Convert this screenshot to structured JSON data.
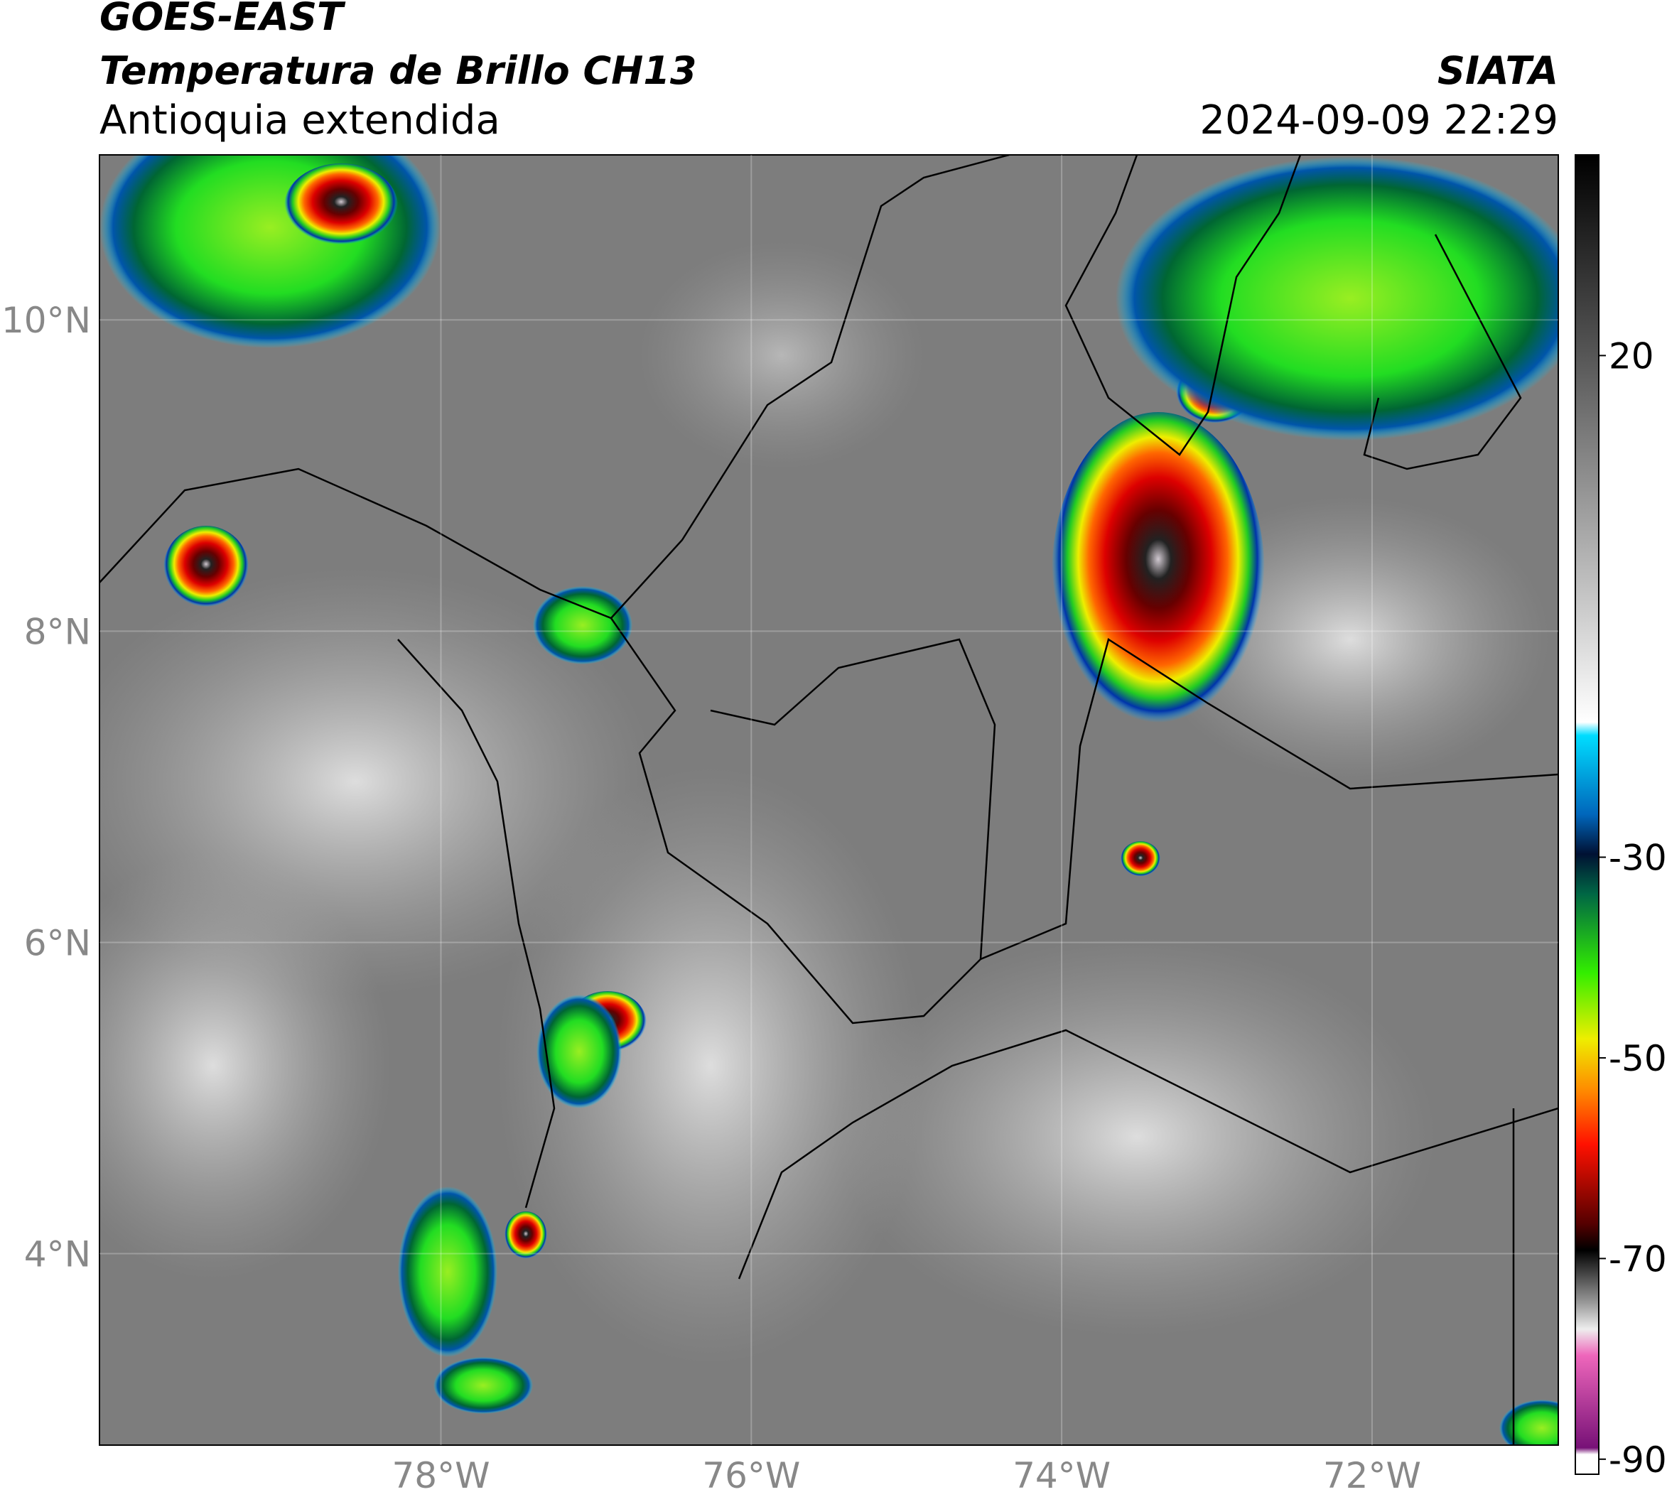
{
  "header": {
    "satellite": "GOES-EAST",
    "product": "Temperatura de Brillo CH13",
    "region": "Antioquia extendida",
    "org": "SIATA",
    "datetime": "2024-09-09 22:29"
  },
  "map": {
    "xlim": [
      -80.2,
      -70.8
    ],
    "ylim": [
      2.77,
      11.06
    ],
    "xticks": [
      {
        "value": -78,
        "label": "78°W"
      },
      {
        "value": -76,
        "label": "76°W"
      },
      {
        "value": -74,
        "label": "74°W"
      },
      {
        "value": -72,
        "label": "72°W"
      }
    ],
    "yticks": [
      {
        "value": 4,
        "label": "4°N"
      },
      {
        "value": 6,
        "label": "6°N"
      },
      {
        "value": 8,
        "label": "8°N"
      },
      {
        "value": 10,
        "label": "10°N"
      }
    ],
    "grid": true
  },
  "colorbar": {
    "lim": [
      -91.5,
      40
    ],
    "ticks": [
      20,
      -30,
      -50,
      -70,
      -90
    ]
  }
}
